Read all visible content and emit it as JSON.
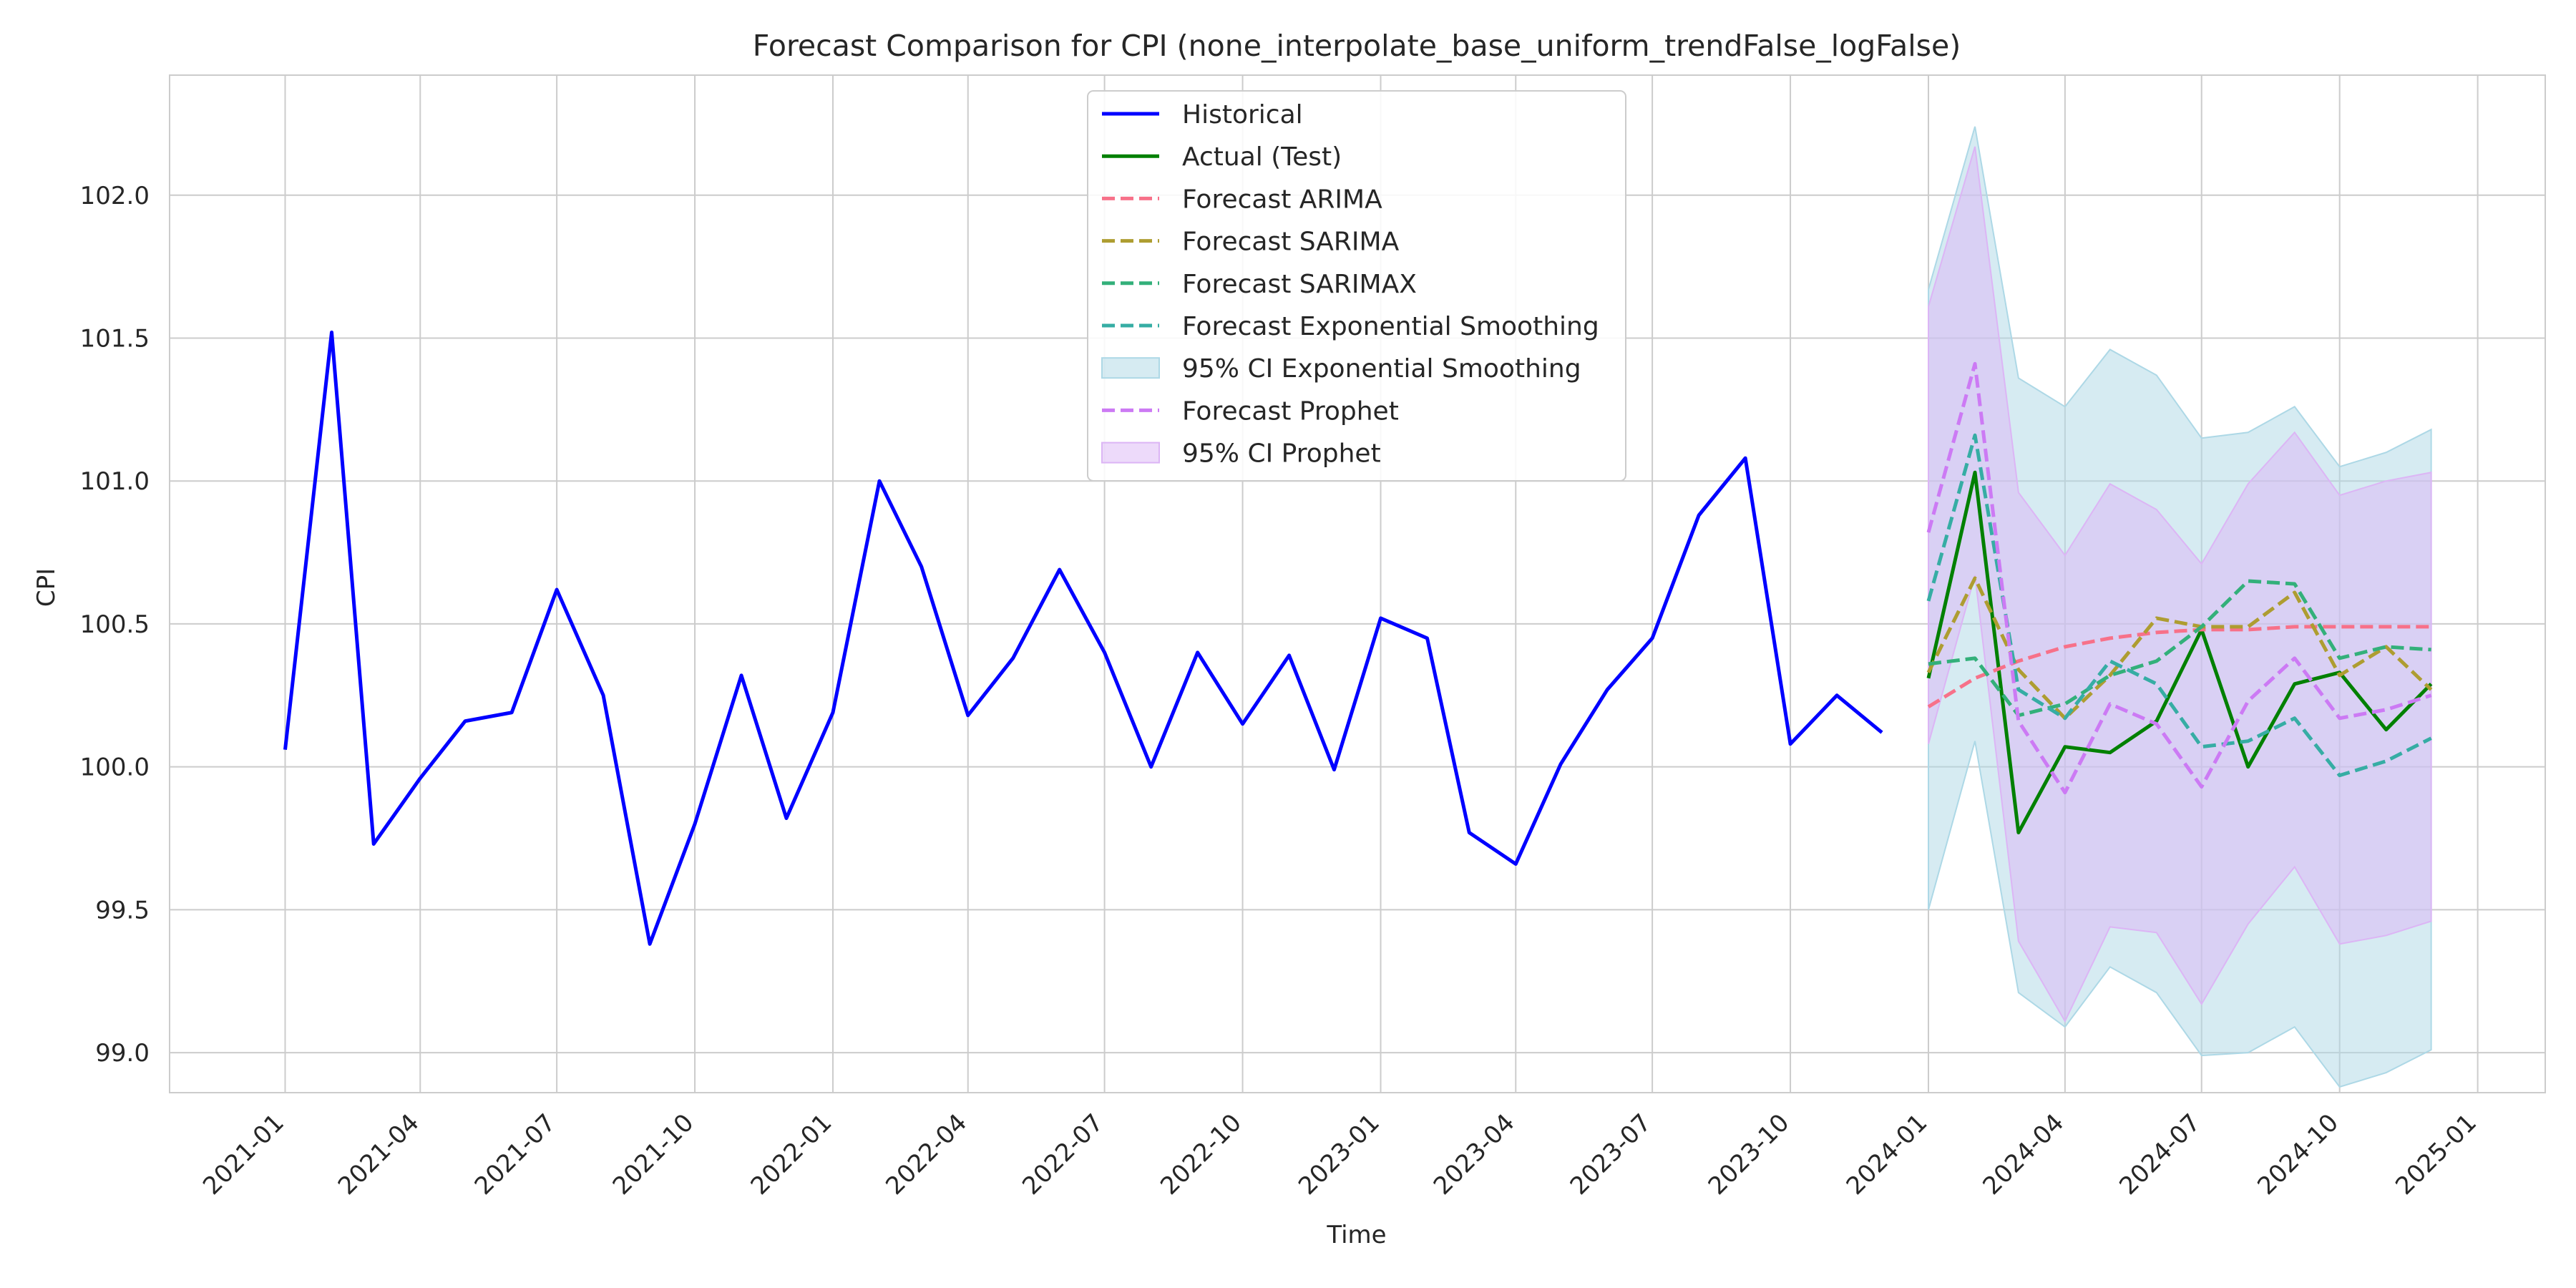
{
  "chart_data": {
    "type": "line",
    "title": "Forecast Comparison for CPI (none_interpolate_base_uniform_trendFalse_logFalse)",
    "xlabel": "Time",
    "ylabel": "CPI",
    "x_ticks": [
      "2021-01",
      "2021-04",
      "2021-07",
      "2021-10",
      "2022-01",
      "2022-04",
      "2022-07",
      "2022-10",
      "2023-01",
      "2023-04",
      "2023-07",
      "2023-10",
      "2024-01",
      "2024-04",
      "2024-07",
      "2024-10",
      "2025-01"
    ],
    "y_ticks": [
      "99.0",
      "99.5",
      "100.0",
      "100.5",
      "101.0",
      "101.5",
      "102.0"
    ],
    "xlim": [
      "2020-10-16",
      "2025-02-15"
    ],
    "ylim": [
      98.86,
      102.42
    ],
    "grid": true,
    "legend_position": "upper center",
    "series": [
      {
        "name": "Historical",
        "style": "solid",
        "color": "#0000ff",
        "x": [
          "2021-01-01",
          "2021-02-01",
          "2021-03-01",
          "2021-04-01",
          "2021-05-01",
          "2021-06-01",
          "2021-07-01",
          "2021-08-01",
          "2021-09-01",
          "2021-10-01",
          "2021-11-01",
          "2021-12-01",
          "2022-01-01",
          "2022-02-01",
          "2022-03-01",
          "2022-04-01",
          "2022-05-01",
          "2022-06-01",
          "2022-07-01",
          "2022-08-01",
          "2022-09-01",
          "2022-10-01",
          "2022-11-01",
          "2022-12-01",
          "2023-01-01",
          "2023-02-01",
          "2023-03-01",
          "2023-04-01",
          "2023-05-01",
          "2023-06-01",
          "2023-07-01",
          "2023-08-01",
          "2023-09-01",
          "2023-10-01",
          "2023-11-01",
          "2023-12-01"
        ],
        "y": [
          100.06,
          101.52,
          99.73,
          99.96,
          100.16,
          100.19,
          100.62,
          100.25,
          99.38,
          99.8,
          100.32,
          99.82,
          100.19,
          101.0,
          100.7,
          100.18,
          100.38,
          100.69,
          100.4,
          100.0,
          100.4,
          100.15,
          100.39,
          99.99,
          100.52,
          100.45,
          99.77,
          99.66,
          100.01,
          100.27,
          100.45,
          100.88,
          101.08,
          100.08,
          100.25,
          100.12
        ]
      },
      {
        "name": "Actual (Test)",
        "style": "solid",
        "color": "#008000",
        "x": [
          "2024-01-01",
          "2024-02-01",
          "2024-03-01",
          "2024-04-01",
          "2024-05-01",
          "2024-06-01",
          "2024-07-01",
          "2024-08-01",
          "2024-09-01",
          "2024-10-01",
          "2024-11-01",
          "2024-12-01"
        ],
        "y": [
          100.31,
          101.03,
          99.77,
          100.07,
          100.05,
          100.16,
          100.48,
          100.0,
          100.29,
          100.33,
          100.13,
          100.29
        ]
      },
      {
        "name": "Forecast ARIMA",
        "style": "dashed",
        "color": "#f77189",
        "x": [
          "2024-01-01",
          "2024-02-01",
          "2024-03-01",
          "2024-04-01",
          "2024-05-01",
          "2024-06-01",
          "2024-07-01",
          "2024-08-01",
          "2024-09-01",
          "2024-10-01",
          "2024-11-01",
          "2024-12-01"
        ],
        "y": [
          100.21,
          100.31,
          100.37,
          100.42,
          100.45,
          100.47,
          100.48,
          100.48,
          100.49,
          100.49,
          100.49,
          100.49
        ]
      },
      {
        "name": "Forecast SARIMA",
        "style": "dashed",
        "color": "#ae9d31",
        "x": [
          "2024-01-01",
          "2024-02-01",
          "2024-03-01",
          "2024-04-01",
          "2024-05-01",
          "2024-06-01",
          "2024-07-01",
          "2024-08-01",
          "2024-09-01",
          "2024-10-01",
          "2024-11-01",
          "2024-12-01"
        ],
        "y": [
          100.33,
          100.66,
          100.34,
          100.17,
          100.32,
          100.52,
          100.49,
          100.49,
          100.61,
          100.32,
          100.42,
          100.27
        ]
      },
      {
        "name": "Forecast SARIMAX",
        "style": "dashed",
        "color": "#33b07a",
        "x": [
          "2024-01-01",
          "2024-02-01",
          "2024-03-01",
          "2024-04-01",
          "2024-05-01",
          "2024-06-01",
          "2024-07-01",
          "2024-08-01",
          "2024-09-01",
          "2024-10-01",
          "2024-11-01",
          "2024-12-01"
        ],
        "y": [
          100.36,
          100.38,
          100.18,
          100.22,
          100.32,
          100.37,
          100.49,
          100.65,
          100.64,
          100.38,
          100.42,
          100.41
        ]
      },
      {
        "name": "Forecast Exponential Smoothing",
        "style": "dashed",
        "color": "#36ada4",
        "x": [
          "2024-01-01",
          "2024-02-01",
          "2024-03-01",
          "2024-04-01",
          "2024-05-01",
          "2024-06-01",
          "2024-07-01",
          "2024-08-01",
          "2024-09-01",
          "2024-10-01",
          "2024-11-01",
          "2024-12-01"
        ],
        "y": [
          100.58,
          101.16,
          100.27,
          100.17,
          100.37,
          100.29,
          100.07,
          100.09,
          100.17,
          99.97,
          100.02,
          100.1
        ]
      },
      {
        "name": "Forecast Prophet",
        "style": "dashed",
        "color": "#cc7af4",
        "x": [
          "2024-01-01",
          "2024-02-01",
          "2024-03-01",
          "2024-04-01",
          "2024-05-01",
          "2024-06-01",
          "2024-07-01",
          "2024-08-01",
          "2024-09-01",
          "2024-10-01",
          "2024-11-01",
          "2024-12-01"
        ],
        "y": [
          100.82,
          101.41,
          100.16,
          99.91,
          100.22,
          100.15,
          99.93,
          100.23,
          100.38,
          100.17,
          100.2,
          100.25
        ]
      }
    ],
    "bands": [
      {
        "name": "95% CI Exponential Smoothing",
        "color": "#add8e6",
        "x": [
          "2024-01-01",
          "2024-02-01",
          "2024-03-01",
          "2024-04-01",
          "2024-05-01",
          "2024-06-01",
          "2024-07-01",
          "2024-08-01",
          "2024-09-01",
          "2024-10-01",
          "2024-11-01",
          "2024-12-01"
        ],
        "lower": [
          99.5,
          100.09,
          99.21,
          99.09,
          99.3,
          99.21,
          98.99,
          99.0,
          99.09,
          98.88,
          98.93,
          99.01
        ],
        "upper": [
          101.67,
          102.24,
          101.36,
          101.26,
          101.46,
          101.37,
          101.15,
          101.17,
          101.26,
          101.05,
          101.1,
          101.18
        ]
      },
      {
        "name": "95% CI Prophet",
        "color": "#dcb5f5",
        "x": [
          "2024-01-01",
          "2024-02-01",
          "2024-03-01",
          "2024-04-01",
          "2024-05-01",
          "2024-06-01",
          "2024-07-01",
          "2024-08-01",
          "2024-09-01",
          "2024-10-01",
          "2024-11-01",
          "2024-12-01"
        ],
        "lower": [
          100.08,
          100.67,
          99.39,
          99.11,
          99.44,
          99.42,
          99.17,
          99.45,
          99.65,
          99.38,
          99.41,
          99.46
        ],
        "upper": [
          101.61,
          102.17,
          100.96,
          100.74,
          100.99,
          100.9,
          100.71,
          100.99,
          101.17,
          100.95,
          101.0,
          101.03
        ]
      }
    ],
    "legend": [
      {
        "label": "Historical",
        "kind": "line",
        "style": "solid",
        "color": "#0000ff"
      },
      {
        "label": "Actual (Test)",
        "kind": "line",
        "style": "solid",
        "color": "#008000"
      },
      {
        "label": "Forecast ARIMA",
        "kind": "line",
        "style": "dashed",
        "color": "#f77189"
      },
      {
        "label": "Forecast SARIMA",
        "kind": "line",
        "style": "dashed",
        "color": "#ae9d31"
      },
      {
        "label": "Forecast SARIMAX",
        "kind": "line",
        "style": "dashed",
        "color": "#33b07a"
      },
      {
        "label": "Forecast Exponential Smoothing",
        "kind": "line",
        "style": "dashed",
        "color": "#36ada4"
      },
      {
        "label": "95% CI Exponential Smoothing",
        "kind": "patch",
        "color": "#add8e6"
      },
      {
        "label": "Forecast Prophet",
        "kind": "line",
        "style": "dashed",
        "color": "#cc7af4"
      },
      {
        "label": "95% CI Prophet",
        "kind": "patch",
        "color": "#dcb5f5"
      }
    ]
  }
}
